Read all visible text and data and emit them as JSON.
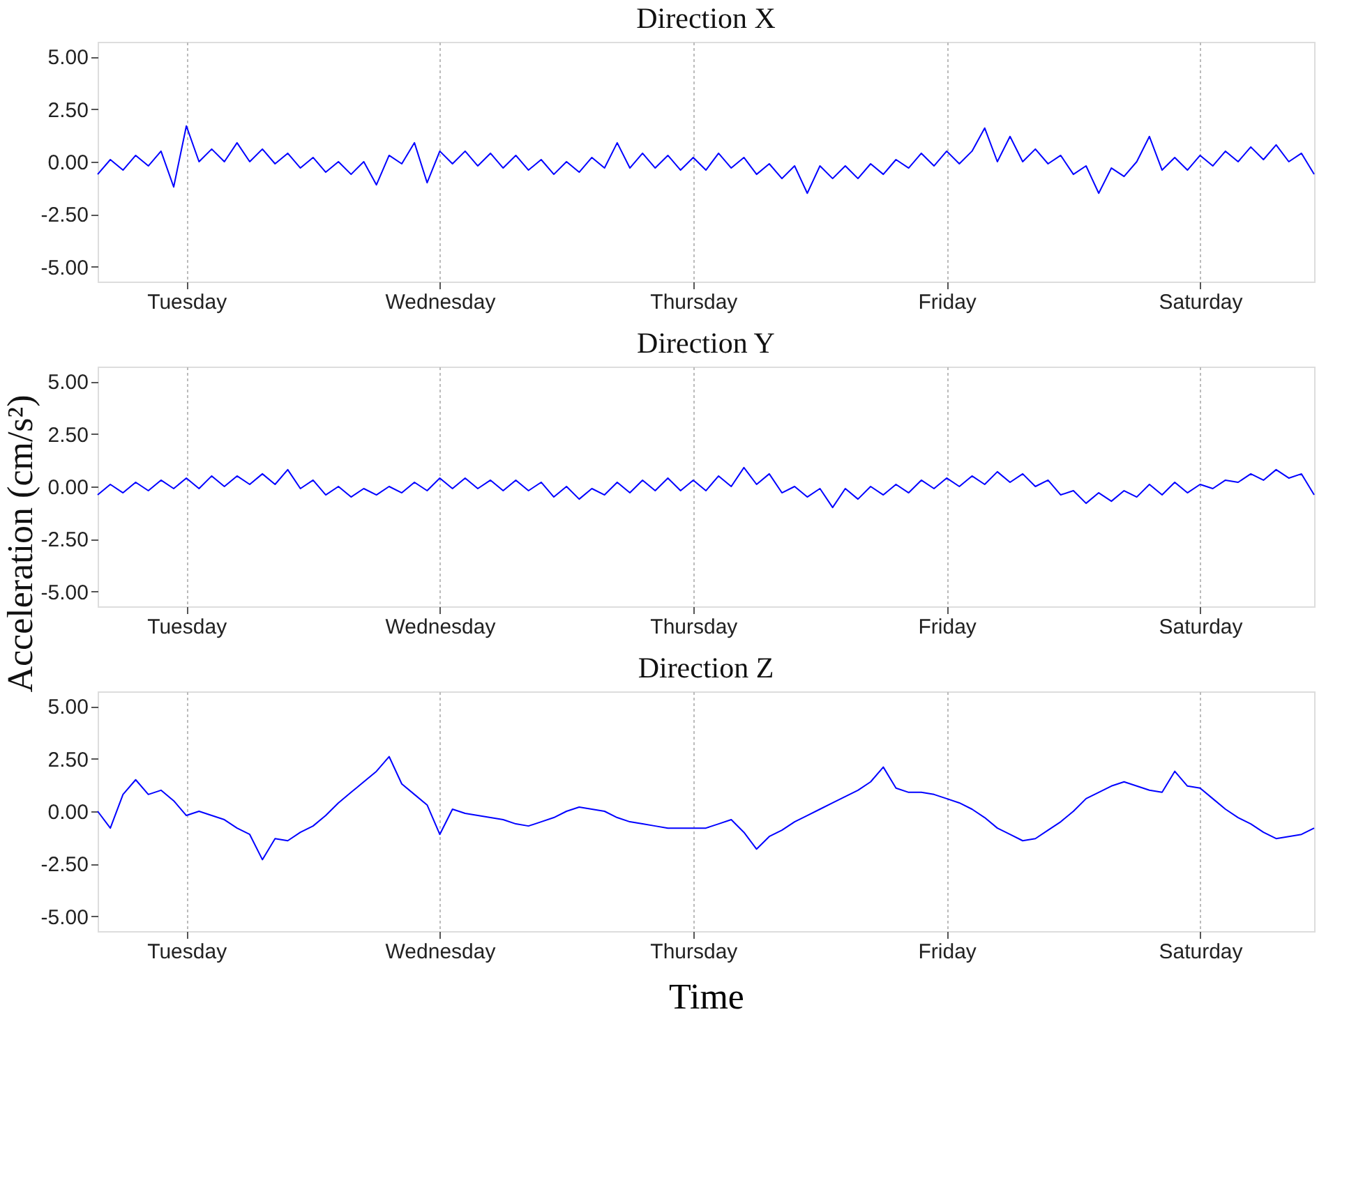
{
  "chart_data": [
    {
      "type": "line",
      "title": "Direction X",
      "ylim": [
        -5.7,
        5.7
      ],
      "grid": "x",
      "line_style": "solid",
      "marker": "none",
      "categories": [
        null,
        null,
        null,
        null,
        null,
        null,
        null,
        "Tuesday",
        null,
        null,
        null,
        null,
        null,
        null,
        null,
        null,
        null,
        null,
        null,
        null,
        null,
        null,
        null,
        null,
        null,
        null,
        null,
        "Wednesday",
        null,
        null,
        null,
        null,
        null,
        null,
        null,
        null,
        null,
        null,
        null,
        null,
        null,
        null,
        null,
        null,
        null,
        null,
        null,
        "Thursday",
        null,
        null,
        null,
        null,
        null,
        null,
        null,
        null,
        null,
        null,
        null,
        null,
        null,
        null,
        null,
        null,
        null,
        null,
        null,
        "Friday",
        null,
        null,
        null,
        null,
        null,
        null,
        null,
        null,
        null,
        null,
        null,
        null,
        null,
        null,
        null,
        null,
        null,
        null,
        null,
        "Saturday",
        null,
        null,
        null,
        null,
        null,
        null,
        null,
        null,
        null
      ],
      "yticks": [
        {
          "value": 5,
          "label": "5.00"
        },
        {
          "value": 2.5,
          "label": "2.50"
        },
        {
          "value": 0,
          "label": "0.00"
        },
        {
          "value": -2.5,
          "label": "-2.50"
        },
        {
          "value": -5,
          "label": "-5.00"
        }
      ],
      "series": [
        {
          "color": "#0000ff",
          "values": [
            -0.6,
            0.1,
            -0.4,
            0.3,
            -0.2,
            0.5,
            -1.2,
            1.7,
            0.0,
            0.6,
            0.0,
            0.9,
            0.0,
            0.6,
            -0.1,
            0.4,
            -0.3,
            0.2,
            -0.5,
            0.0,
            -0.6,
            0.0,
            -1.1,
            0.3,
            -0.1,
            0.9,
            -1.0,
            0.5,
            -0.1,
            0.5,
            -0.2,
            0.4,
            -0.3,
            0.3,
            -0.4,
            0.1,
            -0.6,
            0.0,
            -0.5,
            0.2,
            -0.3,
            0.9,
            -0.3,
            0.4,
            -0.3,
            0.3,
            -0.4,
            0.2,
            -0.4,
            0.4,
            -0.3,
            0.2,
            -0.6,
            -0.1,
            -0.8,
            -0.2,
            -1.5,
            -0.2,
            -0.8,
            -0.2,
            -0.8,
            -0.1,
            -0.6,
            0.1,
            -0.3,
            0.4,
            -0.2,
            0.5,
            -0.1,
            0.5,
            1.6,
            0.0,
            1.2,
            0.0,
            0.6,
            -0.1,
            0.3,
            -0.6,
            -0.2,
            -1.5,
            -0.3,
            -0.7,
            0.0,
            1.2,
            -0.4,
            0.2,
            -0.4,
            0.3,
            -0.2,
            0.5,
            0.0,
            0.7,
            0.1,
            0.8,
            0.0,
            0.4,
            -0.6
          ]
        }
      ]
    },
    {
      "type": "line",
      "title": "Direction Y",
      "ylabel": "Acceleration (cm/s²)",
      "ylim": [
        -5.7,
        5.7
      ],
      "grid": "x",
      "line_style": "solid",
      "marker": "none",
      "categories": [
        null,
        null,
        null,
        null,
        null,
        null,
        null,
        "Tuesday",
        null,
        null,
        null,
        null,
        null,
        null,
        null,
        null,
        null,
        null,
        null,
        null,
        null,
        null,
        null,
        null,
        null,
        null,
        null,
        "Wednesday",
        null,
        null,
        null,
        null,
        null,
        null,
        null,
        null,
        null,
        null,
        null,
        null,
        null,
        null,
        null,
        null,
        null,
        null,
        null,
        "Thursday",
        null,
        null,
        null,
        null,
        null,
        null,
        null,
        null,
        null,
        null,
        null,
        null,
        null,
        null,
        null,
        null,
        null,
        null,
        null,
        "Friday",
        null,
        null,
        null,
        null,
        null,
        null,
        null,
        null,
        null,
        null,
        null,
        null,
        null,
        null,
        null,
        null,
        null,
        null,
        null,
        "Saturday",
        null,
        null,
        null,
        null,
        null,
        null,
        null,
        null,
        null
      ],
      "yticks": [
        {
          "value": 5,
          "label": "5.00"
        },
        {
          "value": 2.5,
          "label": "2.50"
        },
        {
          "value": 0,
          "label": "0.00"
        },
        {
          "value": -2.5,
          "label": "-2.50"
        },
        {
          "value": -5,
          "label": "-5.00"
        }
      ],
      "series": [
        {
          "color": "#0000ff",
          "values": [
            -0.4,
            0.1,
            -0.3,
            0.2,
            -0.2,
            0.3,
            -0.1,
            0.4,
            -0.1,
            0.5,
            0.0,
            0.5,
            0.1,
            0.6,
            0.1,
            0.8,
            -0.1,
            0.3,
            -0.4,
            0.0,
            -0.5,
            -0.1,
            -0.4,
            0.0,
            -0.3,
            0.2,
            -0.2,
            0.4,
            -0.1,
            0.4,
            -0.1,
            0.3,
            -0.2,
            0.3,
            -0.2,
            0.2,
            -0.5,
            0.0,
            -0.6,
            -0.1,
            -0.4,
            0.2,
            -0.3,
            0.3,
            -0.2,
            0.4,
            -0.2,
            0.3,
            -0.2,
            0.5,
            0.0,
            0.9,
            0.1,
            0.6,
            -0.3,
            0.0,
            -0.5,
            -0.1,
            -1.0,
            -0.1,
            -0.6,
            0.0,
            -0.4,
            0.1,
            -0.3,
            0.3,
            -0.1,
            0.4,
            0.0,
            0.5,
            0.1,
            0.7,
            0.2,
            0.6,
            0.0,
            0.3,
            -0.4,
            -0.2,
            -0.8,
            -0.3,
            -0.7,
            -0.2,
            -0.5,
            0.1,
            -0.4,
            0.2,
            -0.3,
            0.1,
            -0.1,
            0.3,
            0.2,
            0.6,
            0.3,
            0.8,
            0.4,
            0.6,
            -0.4
          ]
        }
      ]
    },
    {
      "type": "line",
      "title": "Direction Z",
      "xlabel": "Time",
      "ylim": [
        -5.7,
        5.7
      ],
      "grid": "x",
      "line_style": "solid",
      "marker": "none",
      "categories": [
        null,
        null,
        null,
        null,
        null,
        null,
        null,
        "Tuesday",
        null,
        null,
        null,
        null,
        null,
        null,
        null,
        null,
        null,
        null,
        null,
        null,
        null,
        null,
        null,
        null,
        null,
        null,
        null,
        "Wednesday",
        null,
        null,
        null,
        null,
        null,
        null,
        null,
        null,
        null,
        null,
        null,
        null,
        null,
        null,
        null,
        null,
        null,
        null,
        null,
        "Thursday",
        null,
        null,
        null,
        null,
        null,
        null,
        null,
        null,
        null,
        null,
        null,
        null,
        null,
        null,
        null,
        null,
        null,
        null,
        null,
        "Friday",
        null,
        null,
        null,
        null,
        null,
        null,
        null,
        null,
        null,
        null,
        null,
        null,
        null,
        null,
        null,
        null,
        null,
        null,
        null,
        "Saturday",
        null,
        null,
        null,
        null,
        null,
        null,
        null,
        null,
        null
      ],
      "yticks": [
        {
          "value": 5,
          "label": "5.00"
        },
        {
          "value": 2.5,
          "label": "2.50"
        },
        {
          "value": 0,
          "label": "0.00"
        },
        {
          "value": -2.5,
          "label": "-2.50"
        },
        {
          "value": -5,
          "label": "-5.00"
        }
      ],
      "series": [
        {
          "color": "#0000ff",
          "values": [
            0.0,
            -0.8,
            0.8,
            1.5,
            0.8,
            1.0,
            0.5,
            -0.2,
            0.0,
            -0.2,
            -0.4,
            -0.8,
            -1.1,
            -2.3,
            -1.3,
            -1.4,
            -1.0,
            -0.7,
            -0.2,
            0.4,
            0.9,
            1.4,
            1.9,
            2.6,
            1.3,
            0.8,
            0.3,
            -1.1,
            0.1,
            -0.1,
            -0.2,
            -0.3,
            -0.4,
            -0.6,
            -0.7,
            -0.5,
            -0.3,
            0.0,
            0.2,
            0.1,
            0.0,
            -0.3,
            -0.5,
            -0.6,
            -0.7,
            -0.8,
            -0.8,
            -0.8,
            -0.8,
            -0.6,
            -0.4,
            -1.0,
            -1.8,
            -1.2,
            -0.9,
            -0.5,
            -0.2,
            0.1,
            0.4,
            0.7,
            1.0,
            1.4,
            2.1,
            1.1,
            0.9,
            0.9,
            0.8,
            0.6,
            0.4,
            0.1,
            -0.3,
            -0.8,
            -1.1,
            -1.4,
            -1.3,
            -0.9,
            -0.5,
            0.0,
            0.6,
            0.9,
            1.2,
            1.4,
            1.2,
            1.0,
            0.9,
            1.9,
            1.2,
            1.1,
            0.6,
            0.1,
            -0.3,
            -0.6,
            -1.0,
            -1.3,
            -1.2,
            -1.1,
            -0.8
          ]
        }
      ]
    }
  ]
}
